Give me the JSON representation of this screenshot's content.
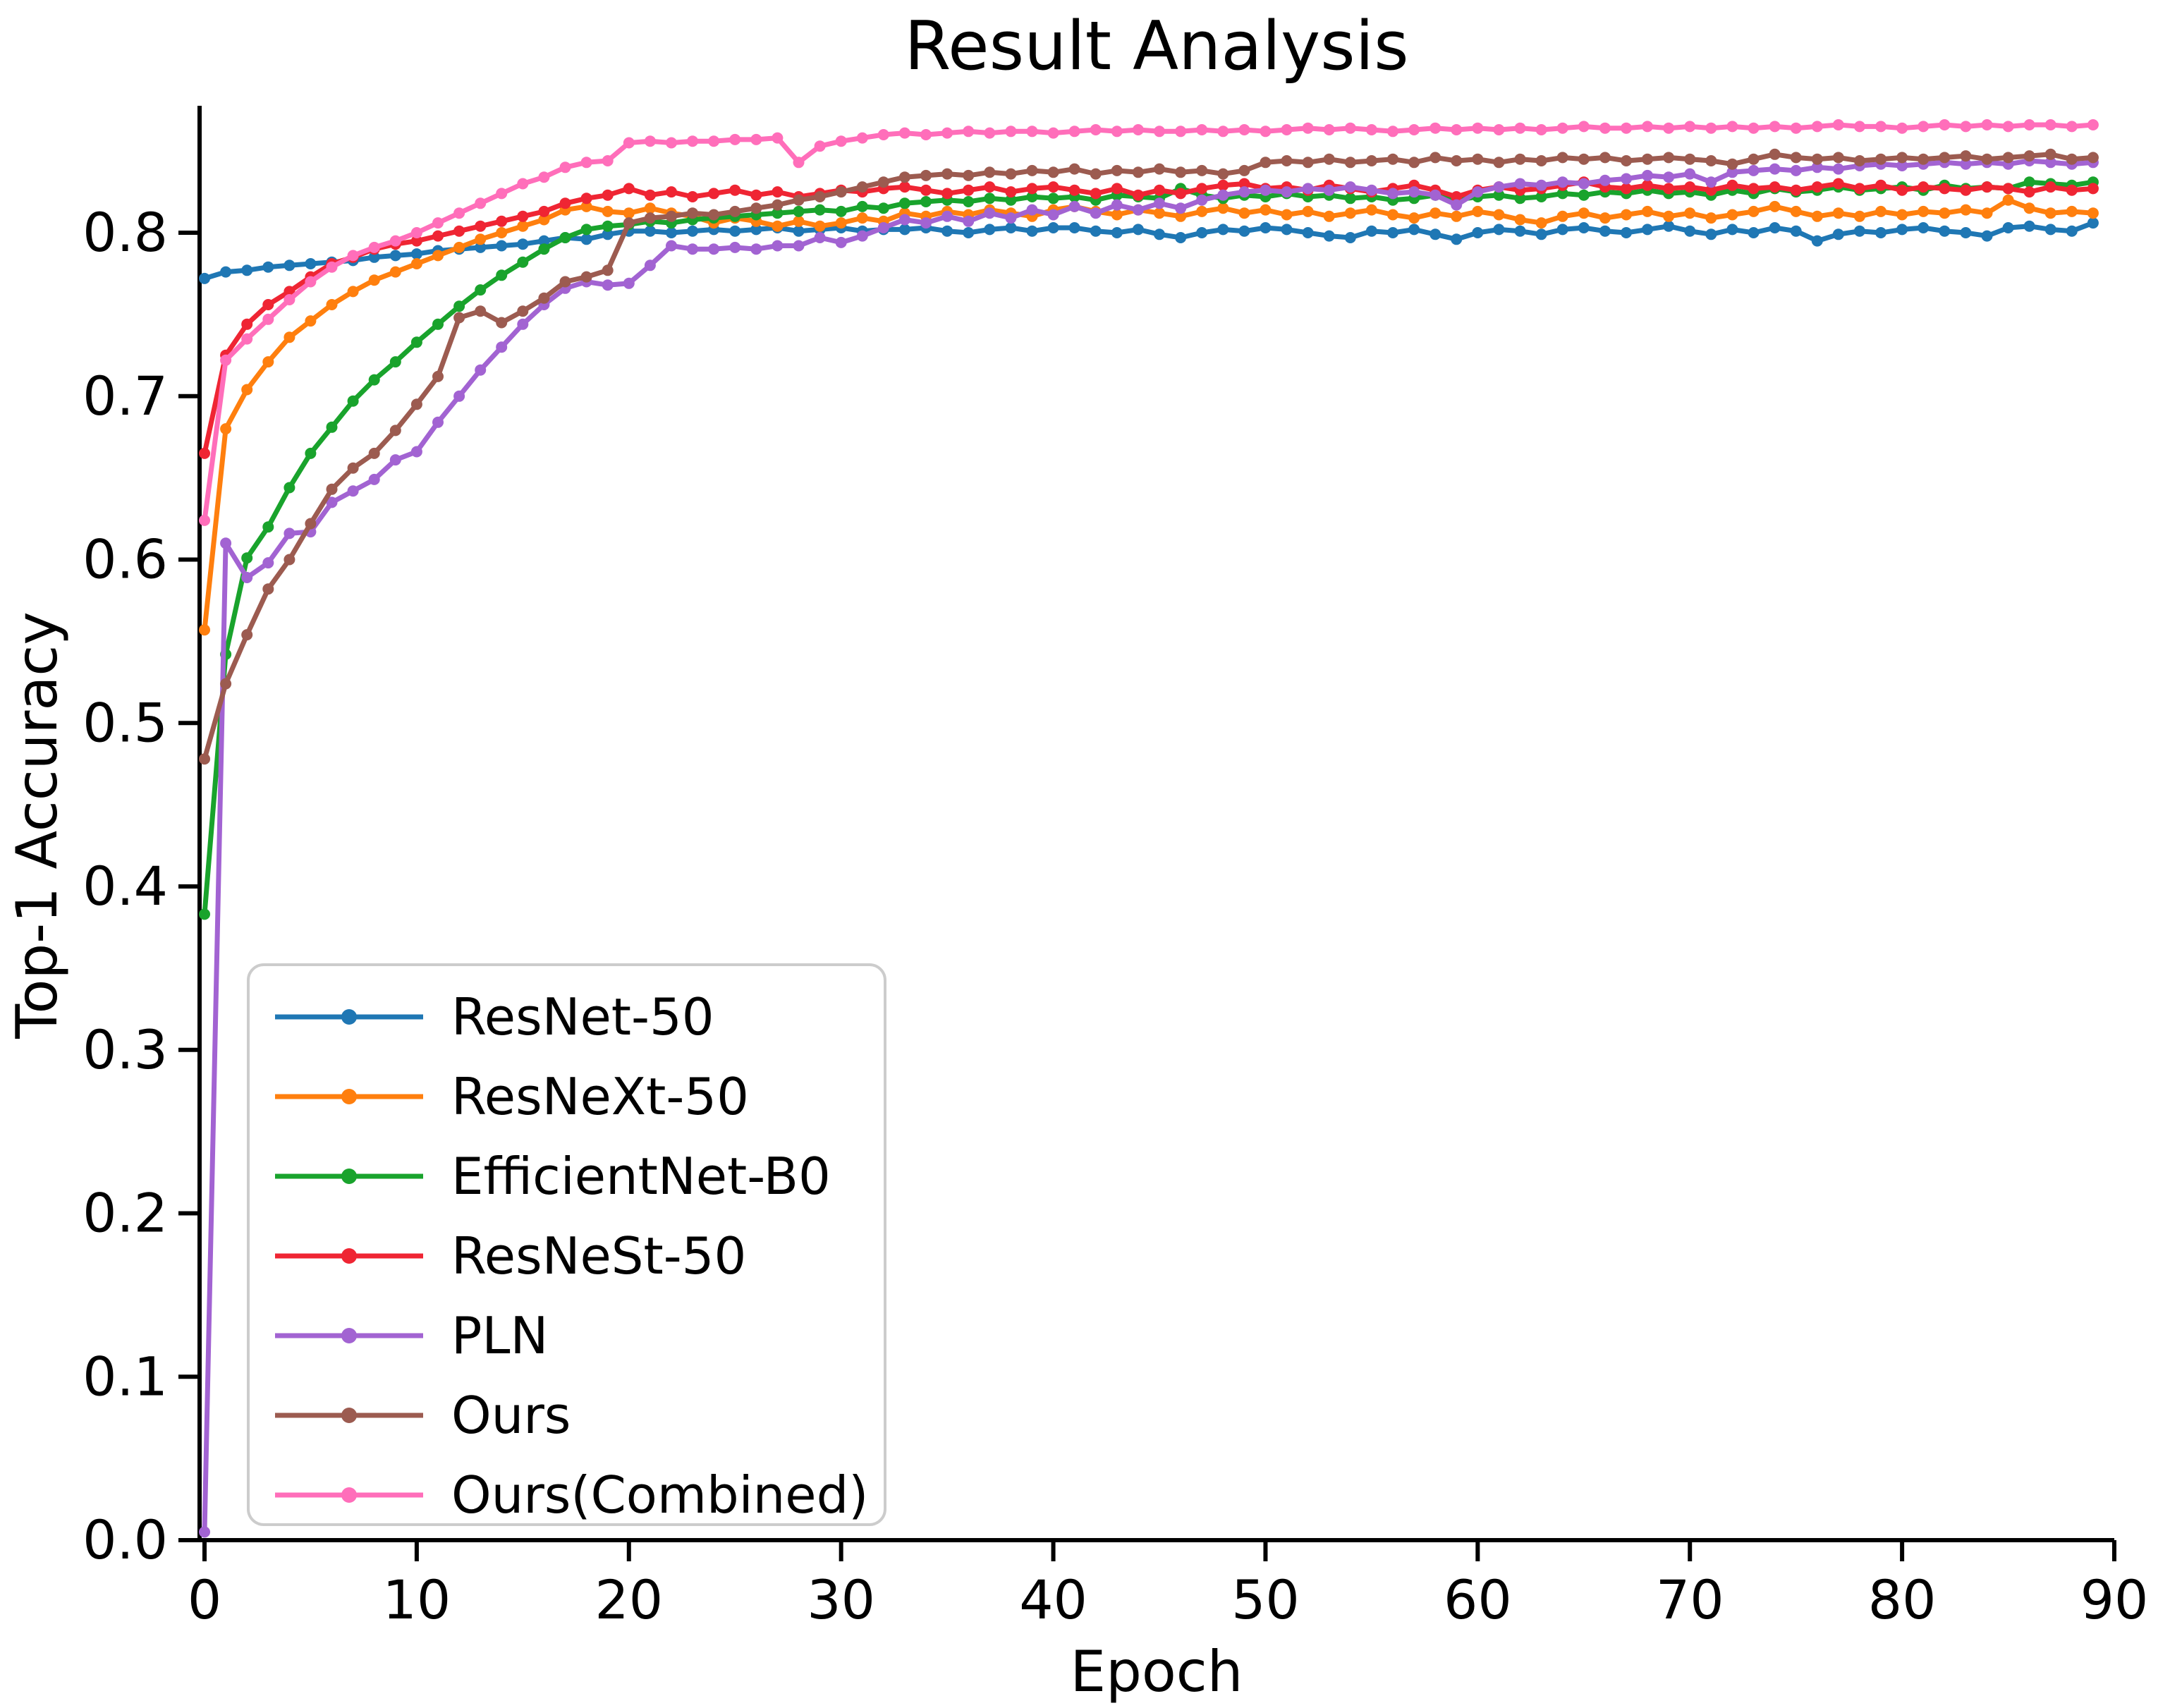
{
  "figure": {
    "title": "Result Analysis",
    "background_color": "#ffffff",
    "axis_color": "#000000"
  },
  "chart_data": {
    "type": "line",
    "title": "Result Analysis",
    "xlabel": "Epoch",
    "ylabel": "Top-1 Accuracy",
    "xlim": [
      0,
      90
    ],
    "ylim": [
      0.0,
      0.875
    ],
    "grid": false,
    "legend_position": "lower left",
    "marker": "point",
    "xticks": [
      0,
      10,
      20,
      30,
      40,
      50,
      60,
      70,
      80,
      90
    ],
    "yticks": [
      0.0,
      0.1,
      0.2,
      0.3,
      0.4,
      0.5,
      0.6,
      0.7,
      0.8
    ],
    "x": [
      0,
      1,
      2,
      3,
      4,
      5,
      6,
      7,
      8,
      9,
      10,
      11,
      12,
      13,
      14,
      15,
      16,
      17,
      18,
      19,
      20,
      21,
      22,
      23,
      24,
      25,
      26,
      27,
      28,
      29,
      30,
      31,
      32,
      33,
      34,
      35,
      36,
      37,
      38,
      39,
      40,
      41,
      42,
      43,
      44,
      45,
      46,
      47,
      48,
      49,
      50,
      51,
      52,
      53,
      54,
      55,
      56,
      57,
      58,
      59,
      60,
      61,
      62,
      63,
      64,
      65,
      66,
      67,
      68,
      69,
      70,
      71,
      72,
      73,
      74,
      75,
      76,
      77,
      78,
      79,
      80,
      81,
      82,
      83,
      84,
      85,
      86,
      87,
      88,
      89
    ],
    "series": [
      {
        "name": "ResNet-50",
        "color": "#1f77b4",
        "values": [
          0.772,
          0.776,
          0.777,
          0.779,
          0.78,
          0.781,
          0.782,
          0.783,
          0.785,
          0.786,
          0.787,
          0.789,
          0.79,
          0.791,
          0.792,
          0.793,
          0.795,
          0.797,
          0.796,
          0.799,
          0.801,
          0.801,
          0.8,
          0.801,
          0.802,
          0.801,
          0.802,
          0.803,
          0.801,
          0.802,
          0.803,
          0.801,
          0.802,
          0.802,
          0.803,
          0.801,
          0.8,
          0.802,
          0.803,
          0.801,
          0.803,
          0.803,
          0.801,
          0.8,
          0.802,
          0.799,
          0.797,
          0.8,
          0.802,
          0.801,
          0.803,
          0.802,
          0.8,
          0.798,
          0.797,
          0.801,
          0.8,
          0.802,
          0.799,
          0.796,
          0.8,
          0.802,
          0.801,
          0.799,
          0.802,
          0.803,
          0.801,
          0.8,
          0.802,
          0.804,
          0.801,
          0.799,
          0.802,
          0.8,
          0.803,
          0.801,
          0.795,
          0.799,
          0.801,
          0.8,
          0.802,
          0.803,
          0.801,
          0.8,
          0.798,
          0.803,
          0.804,
          0.802,
          0.801,
          0.806
        ]
      },
      {
        "name": "ResNeXt-50",
        "color": "#ff7f0e",
        "values": [
          0.557,
          0.68,
          0.704,
          0.721,
          0.736,
          0.746,
          0.756,
          0.764,
          0.771,
          0.776,
          0.781,
          0.786,
          0.791,
          0.796,
          0.8,
          0.804,
          0.808,
          0.814,
          0.816,
          0.813,
          0.812,
          0.815,
          0.812,
          0.81,
          0.806,
          0.809,
          0.807,
          0.804,
          0.807,
          0.804,
          0.806,
          0.809,
          0.807,
          0.812,
          0.81,
          0.813,
          0.811,
          0.814,
          0.812,
          0.81,
          0.814,
          0.816,
          0.813,
          0.811,
          0.814,
          0.812,
          0.81,
          0.813,
          0.815,
          0.812,
          0.814,
          0.811,
          0.813,
          0.81,
          0.812,
          0.814,
          0.811,
          0.809,
          0.812,
          0.81,
          0.813,
          0.811,
          0.808,
          0.806,
          0.81,
          0.812,
          0.809,
          0.811,
          0.813,
          0.81,
          0.812,
          0.809,
          0.811,
          0.813,
          0.816,
          0.813,
          0.81,
          0.812,
          0.81,
          0.813,
          0.811,
          0.813,
          0.812,
          0.814,
          0.812,
          0.82,
          0.815,
          0.812,
          0.813,
          0.812
        ]
      },
      {
        "name": "EfficientNet-B0",
        "color": "#19a32c",
        "values": [
          0.383,
          0.542,
          0.601,
          0.62,
          0.644,
          0.665,
          0.681,
          0.697,
          0.71,
          0.721,
          0.733,
          0.744,
          0.755,
          0.765,
          0.774,
          0.782,
          0.79,
          0.797,
          0.802,
          0.804,
          0.805,
          0.807,
          0.806,
          0.808,
          0.809,
          0.81,
          0.811,
          0.812,
          0.813,
          0.814,
          0.813,
          0.816,
          0.815,
          0.818,
          0.819,
          0.82,
          0.819,
          0.821,
          0.82,
          0.822,
          0.821,
          0.822,
          0.82,
          0.823,
          0.822,
          0.821,
          0.827,
          0.823,
          0.821,
          0.823,
          0.822,
          0.824,
          0.822,
          0.823,
          0.821,
          0.822,
          0.82,
          0.821,
          0.823,
          0.82,
          0.822,
          0.823,
          0.821,
          0.822,
          0.824,
          0.823,
          0.825,
          0.824,
          0.826,
          0.824,
          0.825,
          0.823,
          0.826,
          0.824,
          0.827,
          0.825,
          0.826,
          0.828,
          0.826,
          0.827,
          0.828,
          0.826,
          0.829,
          0.827,
          0.828,
          0.827,
          0.831,
          0.83,
          0.829,
          0.831
        ]
      },
      {
        "name": "ResNeSt-50",
        "color": "#ef2533",
        "values": [
          0.665,
          0.725,
          0.744,
          0.756,
          0.764,
          0.773,
          0.781,
          0.785,
          0.79,
          0.793,
          0.795,
          0.798,
          0.801,
          0.804,
          0.807,
          0.81,
          0.813,
          0.818,
          0.821,
          0.823,
          0.827,
          0.823,
          0.825,
          0.822,
          0.824,
          0.826,
          0.823,
          0.825,
          0.822,
          0.824,
          0.826,
          0.825,
          0.827,
          0.828,
          0.826,
          0.824,
          0.826,
          0.828,
          0.825,
          0.827,
          0.828,
          0.826,
          0.824,
          0.827,
          0.823,
          0.826,
          0.824,
          0.827,
          0.829,
          0.83,
          0.827,
          0.828,
          0.826,
          0.829,
          0.827,
          0.825,
          0.827,
          0.829,
          0.826,
          0.822,
          0.826,
          0.828,
          0.826,
          0.827,
          0.829,
          0.831,
          0.828,
          0.827,
          0.829,
          0.827,
          0.828,
          0.826,
          0.829,
          0.827,
          0.828,
          0.826,
          0.828,
          0.83,
          0.827,
          0.829,
          0.826,
          0.828,
          0.827,
          0.826,
          0.828,
          0.827,
          0.825,
          0.828,
          0.826,
          0.827
        ]
      },
      {
        "name": "PLN",
        "color": "#a263d2",
        "values": [
          0.005,
          0.61,
          0.589,
          0.598,
          0.616,
          0.617,
          0.635,
          0.642,
          0.649,
          0.661,
          0.666,
          0.684,
          0.7,
          0.716,
          0.73,
          0.744,
          0.756,
          0.766,
          0.77,
          0.768,
          0.769,
          0.78,
          0.792,
          0.79,
          0.79,
          0.791,
          0.79,
          0.792,
          0.792,
          0.797,
          0.794,
          0.798,
          0.803,
          0.808,
          0.806,
          0.81,
          0.807,
          0.812,
          0.809,
          0.814,
          0.811,
          0.816,
          0.812,
          0.817,
          0.814,
          0.818,
          0.815,
          0.82,
          0.823,
          0.825,
          0.826,
          0.825,
          0.827,
          0.826,
          0.828,
          0.826,
          0.824,
          0.825,
          0.823,
          0.817,
          0.825,
          0.828,
          0.83,
          0.829,
          0.831,
          0.83,
          0.832,
          0.833,
          0.835,
          0.834,
          0.836,
          0.831,
          0.837,
          0.838,
          0.839,
          0.838,
          0.84,
          0.839,
          0.841,
          0.842,
          0.841,
          0.842,
          0.843,
          0.842,
          0.843,
          0.842,
          0.844,
          0.843,
          0.842,
          0.843
        ]
      },
      {
        "name": "Ours",
        "color": "#9c5b50",
        "values": [
          0.478,
          0.524,
          0.554,
          0.582,
          0.6,
          0.622,
          0.643,
          0.656,
          0.665,
          0.679,
          0.695,
          0.712,
          0.748,
          0.752,
          0.745,
          0.752,
          0.76,
          0.77,
          0.773,
          0.777,
          0.806,
          0.809,
          0.81,
          0.812,
          0.811,
          0.813,
          0.815,
          0.817,
          0.82,
          0.822,
          0.825,
          0.828,
          0.831,
          0.834,
          0.835,
          0.836,
          0.835,
          0.837,
          0.836,
          0.838,
          0.837,
          0.839,
          0.836,
          0.838,
          0.837,
          0.839,
          0.837,
          0.838,
          0.836,
          0.838,
          0.843,
          0.844,
          0.843,
          0.845,
          0.843,
          0.844,
          0.845,
          0.843,
          0.846,
          0.844,
          0.845,
          0.843,
          0.845,
          0.844,
          0.846,
          0.845,
          0.846,
          0.844,
          0.845,
          0.846,
          0.845,
          0.844,
          0.842,
          0.845,
          0.848,
          0.846,
          0.845,
          0.846,
          0.844,
          0.845,
          0.846,
          0.845,
          0.846,
          0.847,
          0.845,
          0.846,
          0.847,
          0.848,
          0.845,
          0.846
        ]
      },
      {
        "name": "Ours(Combined)",
        "color": "#ff6eba",
        "values": [
          0.624,
          0.722,
          0.735,
          0.747,
          0.759,
          0.77,
          0.779,
          0.786,
          0.791,
          0.795,
          0.8,
          0.806,
          0.812,
          0.818,
          0.824,
          0.83,
          0.834,
          0.84,
          0.843,
          0.844,
          0.855,
          0.856,
          0.855,
          0.856,
          0.856,
          0.857,
          0.857,
          0.858,
          0.843,
          0.853,
          0.856,
          0.858,
          0.86,
          0.861,
          0.86,
          0.861,
          0.862,
          0.861,
          0.862,
          0.862,
          0.861,
          0.862,
          0.863,
          0.862,
          0.863,
          0.862,
          0.862,
          0.863,
          0.862,
          0.863,
          0.862,
          0.863,
          0.864,
          0.863,
          0.864,
          0.863,
          0.862,
          0.863,
          0.864,
          0.863,
          0.864,
          0.863,
          0.864,
          0.863,
          0.864,
          0.865,
          0.864,
          0.864,
          0.865,
          0.864,
          0.865,
          0.864,
          0.865,
          0.864,
          0.865,
          0.864,
          0.865,
          0.866,
          0.865,
          0.865,
          0.864,
          0.865,
          0.866,
          0.865,
          0.866,
          0.865,
          0.866,
          0.866,
          0.865,
          0.866
        ]
      }
    ]
  }
}
